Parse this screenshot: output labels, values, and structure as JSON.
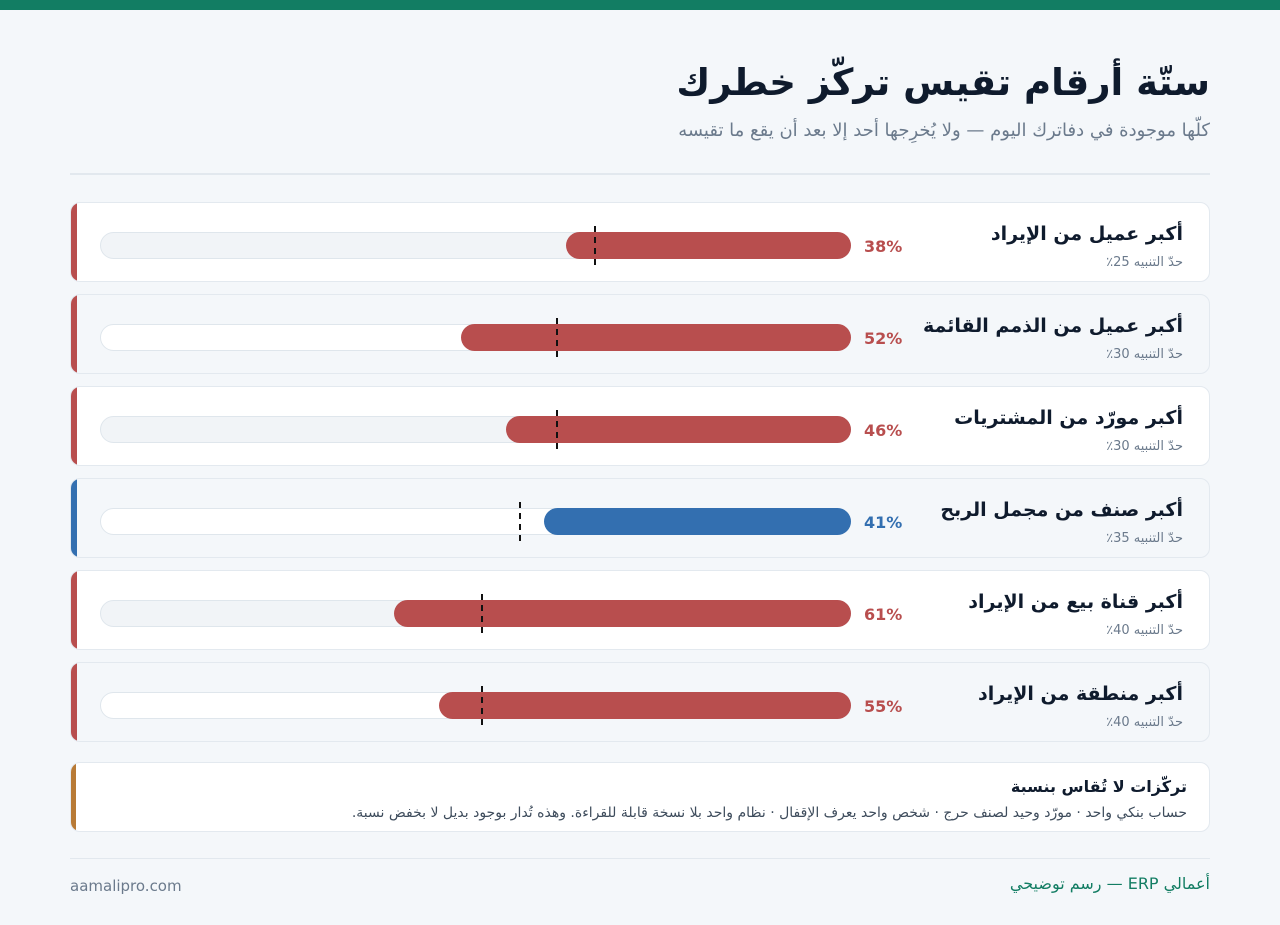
{
  "header": {
    "title": "ستّة أرقام تقيس تركّز خطرك",
    "subtitle": "كلّها موجودة في دفاترك اليوم — ولا يُخرِجها أحد إلا بعد أن يقع ما تقيسه"
  },
  "colors": {
    "alert": "#b84e4e",
    "ok": "#336fb0",
    "note_accent": "#b87a36",
    "brand": "#127d63"
  },
  "chart_data": {
    "type": "bar",
    "unit": "%",
    "ylim": [
      0,
      100
    ],
    "title": "ستّة أرقام تقيس تركّز خطرك",
    "categories": [
      "أكبر عميل من الإيراد",
      "أكبر عميل من الذمم القائمة",
      "أكبر مورّد من المشتريات",
      "أكبر صنف من مجمل الربح",
      "أكبر قناة بيع من الإيراد",
      "أكبر منطقة من الإيراد"
    ],
    "series": [
      {
        "values": [
          38,
          52,
          46,
          41,
          61,
          55
        ]
      }
    ],
    "thresholds": [
      25,
      30,
      30,
      35,
      40,
      40
    ],
    "value_labels": [
      "38%",
      "52%",
      "46%",
      "41%",
      "61%",
      "55%"
    ],
    "threshold_labels": [
      "حدّ التنبيه 25٪",
      "حدّ التنبيه 30٪",
      "حدّ التنبيه 30٪",
      "حدّ التنبيه 35٪",
      "حدّ التنبيه 40٪",
      "حدّ التنبيه 40٪"
    ],
    "status": [
      "alert",
      "alert",
      "alert",
      "ok",
      "alert",
      "alert"
    ]
  },
  "note": {
    "title": "تركّزات لا تُقاس بنسبة",
    "body": "حساب بنكي واحد · مورّد وحيد لصنف حرج · شخص واحد يعرف الإقفال · نظام واحد بلا نسخة قابلة للقراءة. وهذه تُدار بوجود بديل لا بخفض نسبة."
  },
  "footer": {
    "brand": "أعمالي ERP — رسم توضيحي",
    "site": "aamalipro.com"
  }
}
